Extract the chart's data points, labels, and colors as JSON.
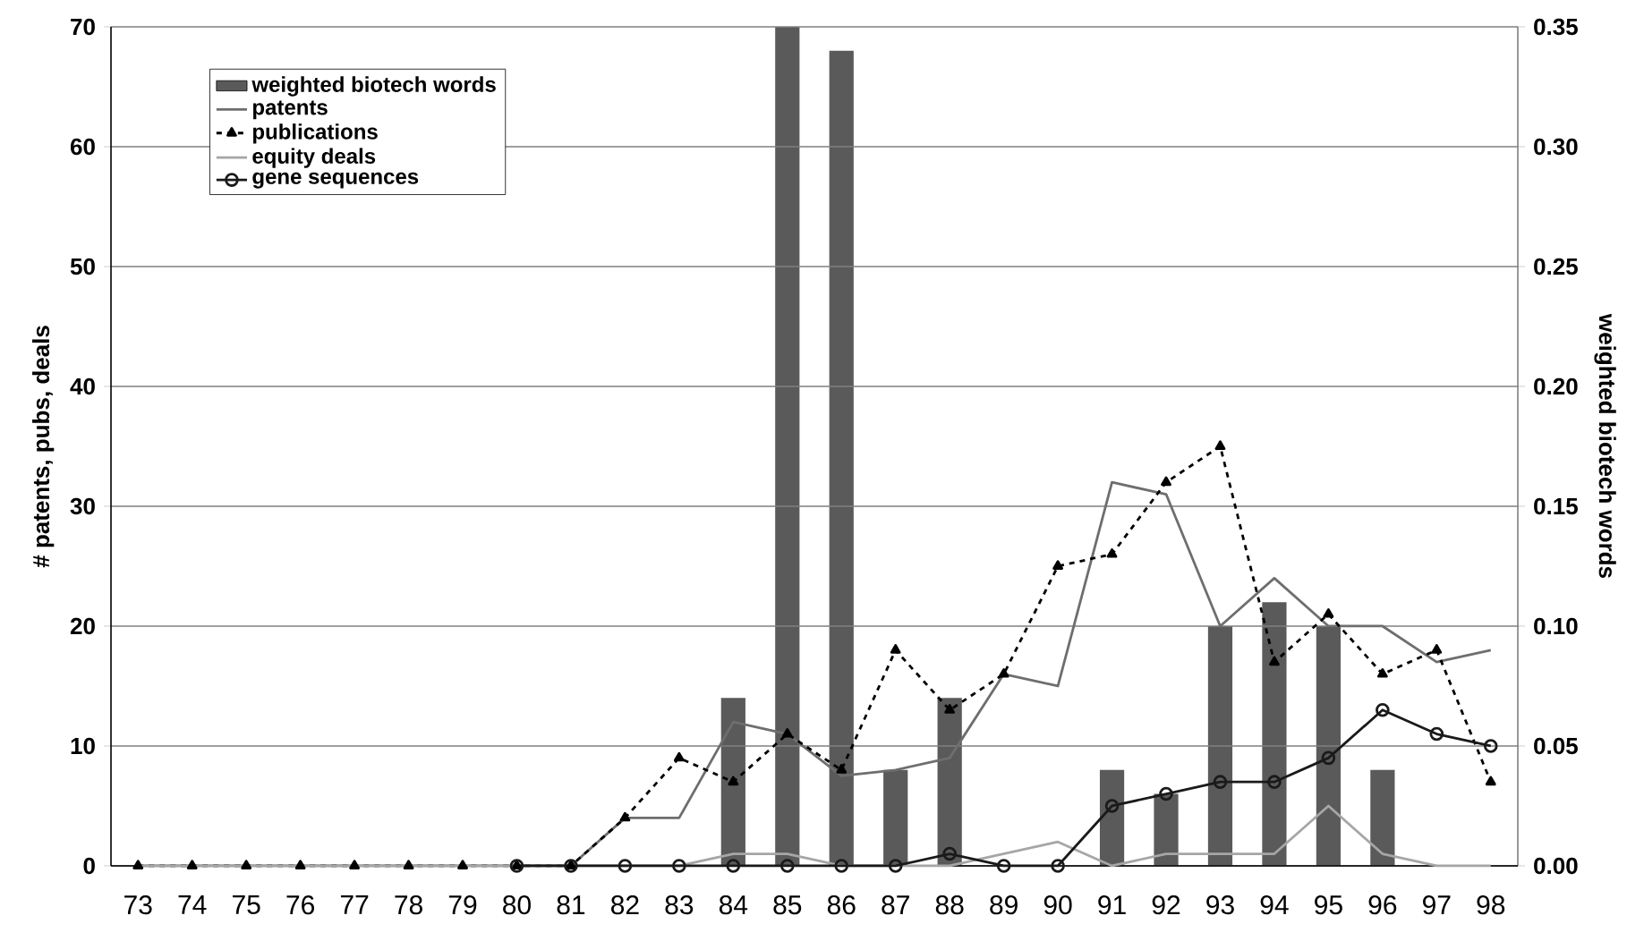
{
  "chart_data": {
    "type": "line",
    "ylabel": "# patents, pubs, deals",
    "y2label": "weighted biotech words",
    "categories": [
      "73",
      "74",
      "75",
      "76",
      "77",
      "78",
      "79",
      "80",
      "81",
      "82",
      "83",
      "84",
      "85",
      "86",
      "87",
      "88",
      "89",
      "90",
      "91",
      "92",
      "93",
      "94",
      "95",
      "96",
      "97",
      "98"
    ],
    "ylim": [
      0,
      70
    ],
    "yticks": [
      0,
      10,
      20,
      30,
      40,
      50,
      60,
      70
    ],
    "y2lim": [
      0,
      0.35
    ],
    "y2ticks": [
      {
        "value": 0,
        "label": "0.00"
      },
      {
        "value": 0.05,
        "label": "0.05"
      },
      {
        "value": 0.1,
        "label": "0.10"
      },
      {
        "value": 0.15,
        "label": "0.15"
      },
      {
        "value": 0.2,
        "label": "0.20"
      },
      {
        "value": 0.25,
        "label": "0.25"
      },
      {
        "value": 0.3,
        "label": "0.30"
      },
      {
        "value": 0.35,
        "label": "0.35"
      }
    ],
    "grid": "y",
    "legend": "top left",
    "series": [
      {
        "name": "weighted biotech words",
        "type": "bar",
        "axis": "y2",
        "color": "#5a5a5a",
        "values": [
          0,
          0,
          0,
          0,
          0,
          0,
          0,
          0,
          0,
          0,
          0,
          0.07,
          0.35,
          0.34,
          0.04,
          0.07,
          0,
          0,
          0.04,
          0.03,
          0.1,
          0.11,
          0.1,
          0.04,
          0,
          0
        ]
      },
      {
        "name": "patents",
        "color": "#6e6e6e",
        "line_style": "solid",
        "marker": "none",
        "values": [
          0,
          0,
          0,
          0,
          0,
          0,
          0,
          0,
          0,
          4,
          4,
          12,
          11,
          7.5,
          8,
          9,
          16,
          15,
          32,
          31,
          20,
          24,
          20,
          20,
          17,
          18
        ]
      },
      {
        "name": "publications",
        "color": "#000000",
        "line_style": "dashed",
        "marker": "triangle",
        "values": [
          0,
          0,
          0,
          0,
          0,
          0,
          0,
          0,
          0,
          4,
          9,
          7,
          11,
          8,
          18,
          13,
          16,
          25,
          26,
          32,
          35,
          17,
          21,
          16,
          18,
          7
        ]
      },
      {
        "name": "equity deals",
        "color": "#a6a6a6",
        "line_style": "solid",
        "marker": "none",
        "values": [
          0,
          0,
          0,
          0,
          0,
          0,
          0,
          0,
          0,
          0,
          0,
          1,
          1,
          0,
          0,
          0,
          1,
          2,
          0,
          1,
          1,
          1,
          5,
          1,
          0,
          0
        ]
      },
      {
        "name": "gene sequences",
        "color": "#1a1a1a",
        "line_style": "solid",
        "marker": "circle",
        "values": [
          null,
          null,
          null,
          null,
          null,
          null,
          null,
          0,
          0,
          0,
          0,
          0,
          0,
          0,
          0,
          1,
          0,
          0,
          5,
          6,
          7,
          7,
          9,
          13,
          11,
          10
        ]
      }
    ]
  }
}
